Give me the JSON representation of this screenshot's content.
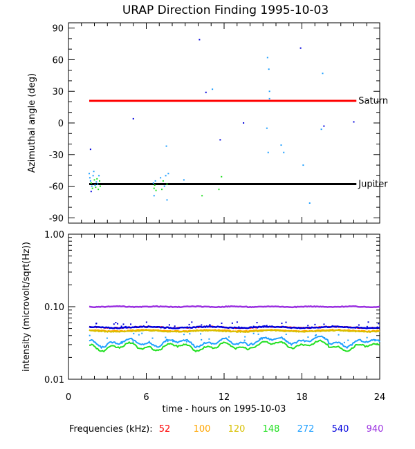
{
  "chart_data": [
    {
      "type": "scatter",
      "title": "URAP Direction Finding  1995-10-03",
      "ylabel": "Azimuthal angle (deg)",
      "xlim": [
        0,
        24
      ],
      "ylim": [
        -95,
        95
      ],
      "yticks": [
        90,
        60,
        30,
        0,
        -30,
        -60,
        -90
      ],
      "reference_lines": [
        {
          "label": "Saturn",
          "y": 21,
          "x_start": 1.6,
          "x_end": 22.2,
          "color": "#ff0000"
        },
        {
          "label": "Jupiter",
          "y": -58,
          "x_start": 1.6,
          "x_end": 22.2,
          "color": "#000000"
        }
      ],
      "points": [
        {
          "x": 1.7,
          "y": -25,
          "c": "#0000dd"
        },
        {
          "x": 1.6,
          "y": -48,
          "c": "#1e9fff"
        },
        {
          "x": 1.65,
          "y": -52,
          "c": "#1e9fff"
        },
        {
          "x": 1.7,
          "y": -55,
          "c": "#1e9fff"
        },
        {
          "x": 1.75,
          "y": -57,
          "c": "#22e022"
        },
        {
          "x": 1.8,
          "y": -60,
          "c": "#1e9fff"
        },
        {
          "x": 1.85,
          "y": -62,
          "c": "#22e022"
        },
        {
          "x": 1.9,
          "y": -50,
          "c": "#1e9fff"
        },
        {
          "x": 1.95,
          "y": -46,
          "c": "#1e9fff"
        },
        {
          "x": 2.0,
          "y": -54,
          "c": "#22e022"
        },
        {
          "x": 2.05,
          "y": -59,
          "c": "#1e9fff"
        },
        {
          "x": 2.1,
          "y": -61,
          "c": "#22e022"
        },
        {
          "x": 2.15,
          "y": -56,
          "c": "#1e9fff"
        },
        {
          "x": 2.2,
          "y": -53,
          "c": "#22e022"
        },
        {
          "x": 2.25,
          "y": -58,
          "c": "#1e9fff"
        },
        {
          "x": 2.3,
          "y": -63,
          "c": "#22e022"
        },
        {
          "x": 1.75,
          "y": -65,
          "c": "#0000dd"
        },
        {
          "x": 2.35,
          "y": -50,
          "c": "#1e9fff"
        },
        {
          "x": 2.4,
          "y": -55,
          "c": "#22e022"
        },
        {
          "x": 2.45,
          "y": -60,
          "c": "#22e022"
        },
        {
          "x": 5.0,
          "y": 4,
          "c": "#0000dd"
        },
        {
          "x": 6.55,
          "y": -57,
          "c": "#1e9fff"
        },
        {
          "x": 6.6,
          "y": -62,
          "c": "#22e022"
        },
        {
          "x": 6.65,
          "y": -59,
          "c": "#22e022"
        },
        {
          "x": 6.7,
          "y": -55,
          "c": "#1e9fff"
        },
        {
          "x": 6.75,
          "y": -64,
          "c": "#22e022"
        },
        {
          "x": 6.6,
          "y": -69,
          "c": "#1e9fff"
        },
        {
          "x": 7.1,
          "y": -52,
          "c": "#1e9fff"
        },
        {
          "x": 7.3,
          "y": -55,
          "c": "#22e022"
        },
        {
          "x": 7.4,
          "y": -60,
          "c": "#1e9fff"
        },
        {
          "x": 7.5,
          "y": -50,
          "c": "#1e9fff"
        },
        {
          "x": 7.6,
          "y": -58,
          "c": "#22e022"
        },
        {
          "x": 7.7,
          "y": -48,
          "c": "#1e9fff"
        },
        {
          "x": 7.55,
          "y": -22,
          "c": "#1e9fff"
        },
        {
          "x": 7.6,
          "y": -73,
          "c": "#1e9fff"
        },
        {
          "x": 7.2,
          "y": -63,
          "c": "#22e022"
        },
        {
          "x": 8.9,
          "y": -54,
          "c": "#1e9fff"
        },
        {
          "x": 10.3,
          "y": -69,
          "c": "#22e022"
        },
        {
          "x": 10.1,
          "y": 79,
          "c": "#0000dd"
        },
        {
          "x": 10.6,
          "y": 29,
          "c": "#0000dd"
        },
        {
          "x": 11.1,
          "y": 32,
          "c": "#1e9fff"
        },
        {
          "x": 11.7,
          "y": -16,
          "c": "#0000dd"
        },
        {
          "x": 11.8,
          "y": -51,
          "c": "#22e022"
        },
        {
          "x": 11.6,
          "y": -63,
          "c": "#22e022"
        },
        {
          "x": 13.5,
          "y": 0,
          "c": "#0000dd"
        },
        {
          "x": 15.35,
          "y": 62,
          "c": "#1e9fff"
        },
        {
          "x": 15.45,
          "y": 51,
          "c": "#1e9fff"
        },
        {
          "x": 15.5,
          "y": 30,
          "c": "#1e9fff"
        },
        {
          "x": 15.5,
          "y": 23,
          "c": "#1e9fff"
        },
        {
          "x": 15.3,
          "y": -5,
          "c": "#1e9fff"
        },
        {
          "x": 15.4,
          "y": -28,
          "c": "#1e9fff"
        },
        {
          "x": 16.4,
          "y": -21,
          "c": "#1e9fff"
        },
        {
          "x": 16.6,
          "y": -28,
          "c": "#1e9fff"
        },
        {
          "x": 17.9,
          "y": 71,
          "c": "#0000dd"
        },
        {
          "x": 18.1,
          "y": -40,
          "c": "#1e9fff"
        },
        {
          "x": 18.6,
          "y": -76,
          "c": "#1e9fff"
        },
        {
          "x": 19.6,
          "y": 47,
          "c": "#1e9fff"
        },
        {
          "x": 19.5,
          "y": -6,
          "c": "#1e9fff"
        },
        {
          "x": 19.7,
          "y": -3,
          "c": "#0000dd"
        },
        {
          "x": 22.0,
          "y": 1,
          "c": "#0000dd"
        }
      ]
    },
    {
      "type": "line",
      "ylabel": "intensity (microvolt/sqrt(Hz))",
      "xlabel": "time - hours on 1995-10-03",
      "xlim": [
        0,
        24
      ],
      "xticks": [
        0,
        6,
        12,
        18,
        24
      ],
      "yscale": "log",
      "ylim": [
        0.01,
        1.0
      ],
      "yticks": [
        1.0,
        0.1,
        0.01
      ],
      "ytick_labels": [
        "1.00",
        "0.10",
        "0.01"
      ],
      "legend_title": "Frequencies (kHz):",
      "legend_placement": "bottom",
      "series": [
        {
          "name": "52",
          "color": "#ff0000",
          "level": 0.052
        },
        {
          "name": "100",
          "color": "#ffa500",
          "level": 0.047
        },
        {
          "name": "120",
          "color": "#d8c000",
          "level": 0.046
        },
        {
          "name": "148",
          "color": "#22e022",
          "level": 0.028
        },
        {
          "name": "272",
          "color": "#1e9fff",
          "level": 0.032
        },
        {
          "name": "540",
          "color": "#0000dd",
          "level": 0.052
        },
        {
          "name": "940",
          "color": "#9a2fe0",
          "level": 0.1
        }
      ]
    }
  ]
}
